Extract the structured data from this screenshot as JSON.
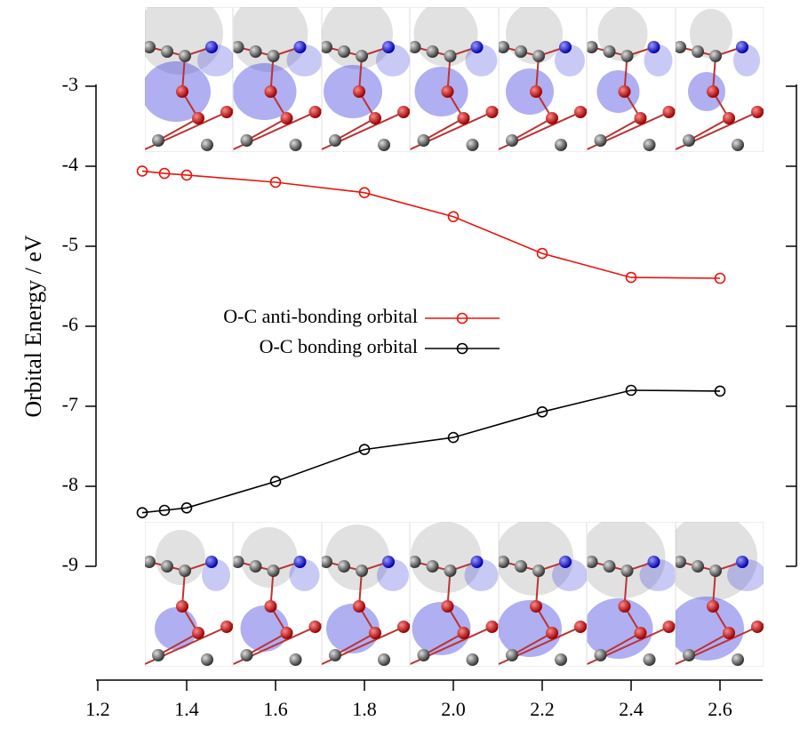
{
  "chart_data": {
    "type": "line",
    "y_label": "Orbital Energy / eV",
    "x": [
      1.3,
      1.35,
      1.4,
      1.6,
      1.8,
      2.0,
      2.2,
      2.4,
      2.6
    ],
    "series": [
      {
        "name": "O-C anti-bonding orbital",
        "color": "#e8140c",
        "values": [
          -4.06,
          -4.09,
          -4.11,
          -4.2,
          -4.33,
          -4.63,
          -5.09,
          -5.39,
          -5.4
        ]
      },
      {
        "name": "O-C bonding orbital",
        "color": "#000000",
        "values": [
          -8.33,
          -8.3,
          -8.27,
          -7.94,
          -7.54,
          -7.39,
          -7.07,
          -6.8,
          -6.81
        ]
      }
    ],
    "xlim": [
      1.2,
      2.7
    ],
    "xticks": [
      1.2,
      1.4,
      1.6,
      1.8,
      {
        "value": 2,
        "label": "2.0"
      },
      2.2,
      2.4,
      2.6
    ],
    "ylim": [
      -9,
      -3
    ],
    "yticks": [
      -3,
      -4,
      -5,
      -6,
      -7,
      -8,
      -9
    ],
    "grid": false
  }
}
